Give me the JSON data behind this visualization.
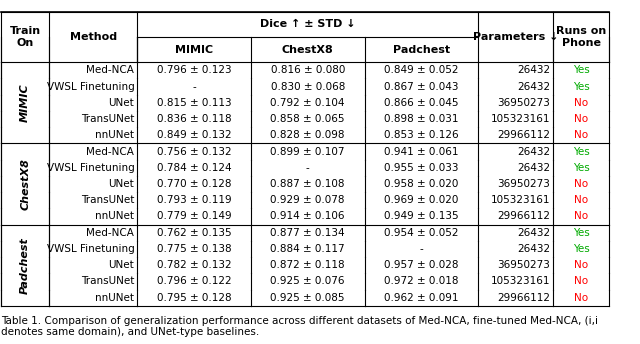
{
  "caption": "Table 1. Comparison of generalization performance across different datasets of Med-NCA, fine-tuned Med-NCA, (i,i denotes same domain), and UNet-type baselines.",
  "header_row1": [
    "Train\nOn",
    "Method",
    "Dice ↑ ± STD ↓",
    "",
    "",
    "Parameters ↓",
    "Runs on\nPhone"
  ],
  "header_row2": [
    "",
    "",
    "MIMIC",
    "ChestX8",
    "Padchest",
    "",
    ""
  ],
  "train_groups": [
    "MIMIC",
    "ChestX8",
    "Padchest"
  ],
  "methods": [
    "Med-NCA",
    "VWSL Finetuning",
    "UNet",
    "TransUNet",
    "nnUNet"
  ],
  "data": {
    "MIMIC": {
      "Med-NCA": {
        "MIMIC": "0.796 ± 0.123",
        "ChestX8": "0.816 ± 0.080",
        "Padchest": "0.849 ± 0.052",
        "params": "26432",
        "phone": "Yes"
      },
      "VWSL Finetuning": {
        "MIMIC": "-",
        "ChestX8": "0.830 ± 0.068",
        "Padchest": "0.867 ± 0.043",
        "params": "26432",
        "phone": "Yes"
      },
      "UNet": {
        "MIMIC": "0.815 ± 0.113",
        "ChestX8": "0.792 ± 0.104",
        "Padchest": "0.866 ± 0.045",
        "params": "36950273",
        "phone": "No"
      },
      "TransUNet": {
        "MIMIC": "0.836 ± 0.118",
        "ChestX8": "0.858 ± 0.065",
        "Padchest": "0.898 ± 0.031",
        "params": "105323161",
        "phone": "No"
      },
      "nnUNet": {
        "MIMIC": "0.849 ± 0.132",
        "ChestX8": "0.828 ± 0.098",
        "Padchest": "0.853 ± 0.126",
        "params": "29966112",
        "phone": "No"
      }
    },
    "ChestX8": {
      "Med-NCA": {
        "MIMIC": "0.756 ± 0.132",
        "ChestX8": "0.899 ± 0.107",
        "Padchest": "0.941 ± 0.061",
        "params": "26432",
        "phone": "Yes"
      },
      "VWSL Finetuning": {
        "MIMIC": "0.784 ± 0.124",
        "ChestX8": "-",
        "Padchest": "0.955 ± 0.033",
        "params": "26432",
        "phone": "Yes"
      },
      "UNet": {
        "MIMIC": "0.770 ± 0.128",
        "ChestX8": "0.887 ± 0.108",
        "Padchest": "0.958 ± 0.020",
        "params": "36950273",
        "phone": "No"
      },
      "TransUNet": {
        "MIMIC": "0.793 ± 0.119",
        "ChestX8": "0.929 ± 0.078",
        "Padchest": "0.969 ± 0.020",
        "params": "105323161",
        "phone": "No"
      },
      "nnUNet": {
        "MIMIC": "0.779 ± 0.149",
        "ChestX8": "0.914 ± 0.106",
        "Padchest": "0.949 ± 0.135",
        "params": "29966112",
        "phone": "No"
      }
    },
    "Padchest": {
      "Med-NCA": {
        "MIMIC": "0.762 ± 0.135",
        "ChestX8": "0.877 ± 0.134",
        "Padchest": "0.954 ± 0.052",
        "params": "26432",
        "phone": "Yes"
      },
      "VWSL Finetuning": {
        "MIMIC": "0.775 ± 0.138",
        "ChestX8": "0.884 ± 0.117",
        "Padchest": "-",
        "params": "26432",
        "phone": "Yes"
      },
      "UNet": {
        "MIMIC": "0.782 ± 0.132",
        "ChestX8": "0.872 ± 0.118",
        "Padchest": "0.957 ± 0.028",
        "params": "36950273",
        "phone": "No"
      },
      "TransUNet": {
        "MIMIC": "0.796 ± 0.122",
        "ChestX8": "0.925 ± 0.076",
        "Padchest": "0.972 ± 0.018",
        "params": "105323161",
        "phone": "No"
      },
      "nnUNet": {
        "MIMIC": "0.795 ± 0.128",
        "ChestX8": "0.925 ± 0.085",
        "Padchest": "0.962 ± 0.091",
        "params": "29966112",
        "phone": "No"
      }
    }
  },
  "yes_color": "#00aa00",
  "no_color": "#ff0000",
  "bg_color": "#ffffff",
  "header_bg": "#f0f0f0",
  "fontsize": 7.5,
  "caption_fontsize": 7.5
}
